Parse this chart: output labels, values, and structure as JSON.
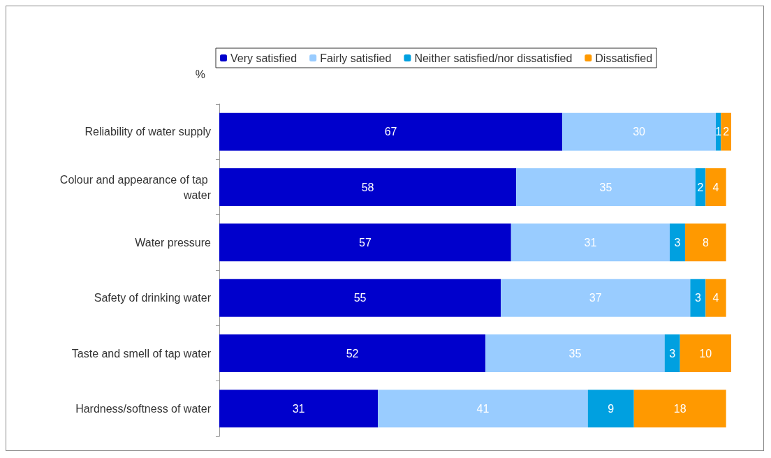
{
  "chart_data": {
    "type": "bar",
    "orientation": "horizontal",
    "stacked": true,
    "data_labels": true,
    "legend": "top",
    "ylabel": "%",
    "categories": [
      "Reliability of water supply",
      "Colour and appearance of tap water",
      "Water pressure",
      "Safety of drinking water",
      "Taste and smell of tap water",
      "Hardness/softness of water"
    ],
    "series": [
      {
        "name": "Very satisfied",
        "color": "#0000cc",
        "values": [
          67,
          58,
          57,
          55,
          52,
          31
        ]
      },
      {
        "name": "Fairly satisfied",
        "color": "#99ccff",
        "values": [
          30,
          35,
          31,
          37,
          35,
          41
        ]
      },
      {
        "name": "Neither satisfied/nor dissatisfied",
        "color": "#00a0e0",
        "values": [
          1,
          2,
          3,
          3,
          3,
          9
        ]
      },
      {
        "name": "Dissatisfied",
        "color": "#ff9900",
        "values": [
          2,
          4,
          8,
          4,
          10,
          18
        ]
      }
    ]
  }
}
